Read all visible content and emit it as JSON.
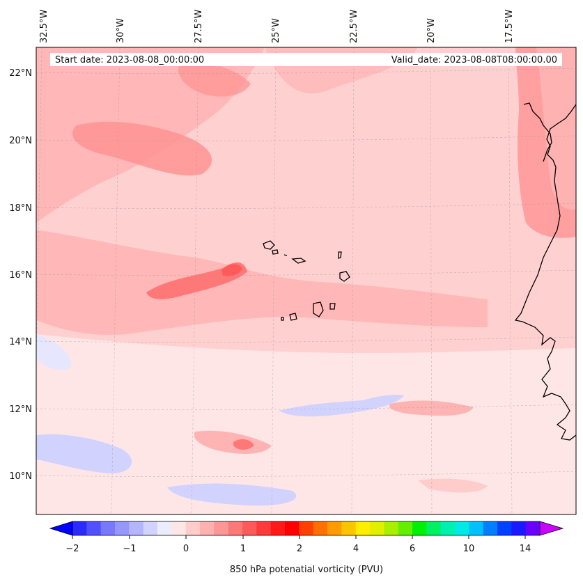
{
  "map": {
    "start_label": "Start date: 2023-08-08_00:00:00",
    "valid_label": "Valid_date: 2023-08-08T08:00:00.00",
    "lon_ticks": [
      "32.5°W",
      "30°W",
      "27.5°W",
      "25°W",
      "22.5°W",
      "20°W",
      "17.5°W"
    ],
    "lat_ticks": [
      "22°N",
      "20°N",
      "18°N",
      "16°N",
      "14°N",
      "12°N",
      "10°N"
    ],
    "colorbar": {
      "label": "850 hPa potenatial vorticity (PVU)",
      "tick_labels": [
        "−2",
        "−1",
        "0",
        "1",
        "2",
        "4",
        "6",
        "10",
        "14"
      ],
      "colors": [
        "#0000ff",
        "#2a2aff",
        "#5050ff",
        "#7878ff",
        "#9696ff",
        "#b4b4ff",
        "#d2d2ff",
        "#ececff",
        "#ffe6e6",
        "#ffcccc",
        "#ffb0b0",
        "#ff9696",
        "#ff7878",
        "#ff5a5a",
        "#ff3a3a",
        "#ff1a1a",
        "#ff0000",
        "#ff4000",
        "#ff7000",
        "#ff9a00",
        "#ffc400",
        "#ffee00",
        "#e0f000",
        "#a8f000",
        "#60f000",
        "#00f000",
        "#00f060",
        "#00f0b0",
        "#00e8e8",
        "#00c0ff",
        "#0080ff",
        "#0040ff",
        "#1a1aff",
        "#6a00ff",
        "#9a00ff"
      ],
      "extend_low_color": "#0000ff",
      "extend_high_color": "#cc00ff"
    },
    "colors": {
      "land_coast": "#000000",
      "background_field": "#ffd0d0"
    }
  }
}
